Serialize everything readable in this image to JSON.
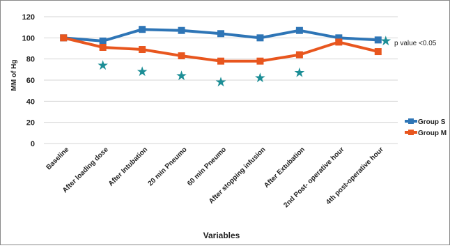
{
  "chart_data": {
    "type": "line",
    "title": "",
    "xlabel": "Variables",
    "ylabel": "MM of Hg",
    "ylim": [
      0,
      120
    ],
    "yticks": [
      0,
      20,
      40,
      60,
      80,
      100,
      120
    ],
    "grid": true,
    "legend_placement": "right",
    "categories": [
      "Baseline",
      "After loading dose",
      "After Intubation",
      "20 min Pneumo",
      "60 min Pneumo",
      "After stopping infusion",
      "After Extubation",
      "2nd Post- operative hour",
      "4th post-operative hour"
    ],
    "series": [
      {
        "name": "Group S",
        "color": "#2E75B6",
        "values": [
          100,
          97,
          108,
          107,
          104,
          100,
          107,
          100,
          98
        ]
      },
      {
        "name": "Group M",
        "color": "#E8561E",
        "values": [
          100,
          91,
          89,
          83,
          78,
          78,
          84,
          96,
          87
        ]
      }
    ],
    "significance_markers": {
      "color": "#1C8E96",
      "glyph": "★",
      "points": [
        {
          "category": "After loading dose",
          "y": 74
        },
        {
          "category": "After Intubation",
          "y": 68
        },
        {
          "category": "20 min Pneumo",
          "y": 64
        },
        {
          "category": "60 min Pneumo",
          "y": 58
        },
        {
          "category": "After stopping infusion",
          "y": 62
        },
        {
          "category": "After Extubation",
          "y": 67
        },
        {
          "category": "4th post-operative hour",
          "y": 97
        }
      ]
    },
    "annotation": "p value <0.05"
  }
}
